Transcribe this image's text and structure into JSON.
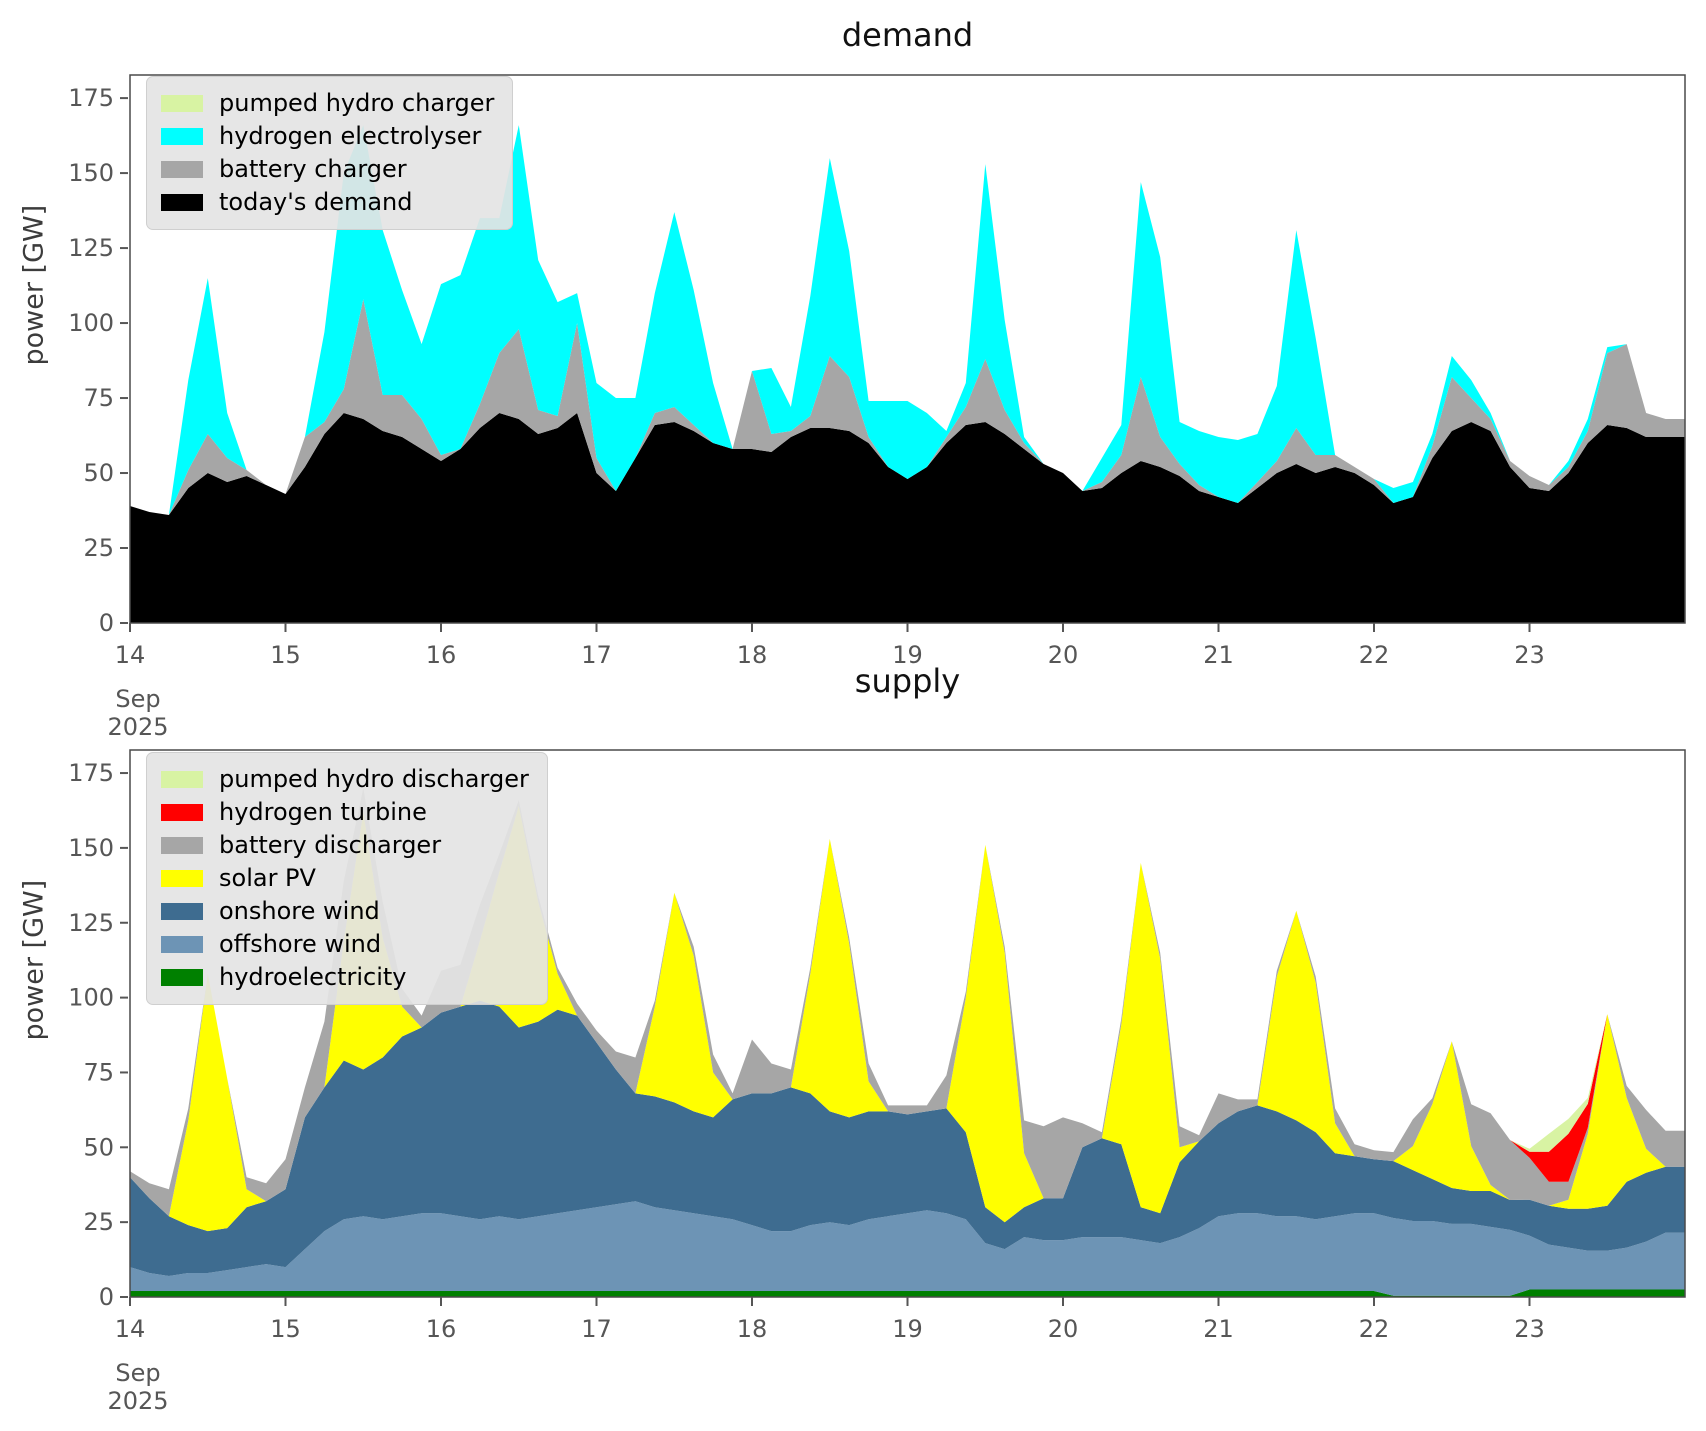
{
  "figure": {
    "ylabel": "power [GW]",
    "x_note": {
      "month": "Sep",
      "year": "2025"
    }
  },
  "chart_data": [
    {
      "id": "demand",
      "type": "area",
      "title": "demand",
      "ylabel": "power [GW]",
      "x_note": {
        "month": "Sep",
        "year": "2025"
      },
      "x_start": 14.0,
      "x_step": 0.125,
      "xlim": [
        14,
        24
      ],
      "ylim": [
        0,
        182.7
      ],
      "x_ticks": [
        14,
        15,
        16,
        17,
        18,
        19,
        20,
        21,
        22,
        23
      ],
      "y_ticks": [
        0,
        25,
        50,
        75,
        100,
        125,
        150,
        175
      ],
      "legend_position": "upper-left",
      "grid": false,
      "series": [
        {
          "name": "today's demand",
          "color": "#000000",
          "values": [
            39,
            37,
            36,
            45,
            50,
            47,
            49,
            46,
            43,
            52,
            63,
            70,
            68,
            64,
            62,
            58,
            54,
            58,
            65,
            70,
            68,
            63,
            65,
            70,
            50,
            44,
            55,
            66,
            67,
            64,
            60,
            58,
            58,
            57,
            62,
            65,
            65,
            64,
            60,
            52,
            48,
            52,
            60,
            66,
            67,
            63,
            58,
            53,
            50,
            44,
            45,
            50,
            54,
            52,
            49,
            44,
            42,
            40,
            45,
            50,
            53,
            50,
            52,
            50,
            46,
            40,
            42,
            55,
            64,
            67,
            64,
            52,
            45,
            44,
            50,
            60,
            66,
            65,
            62,
            62
          ]
        },
        {
          "name": "battery charger",
          "color": "#A6A6A6",
          "values": [
            0,
            0,
            0,
            6,
            13,
            8,
            2,
            0,
            0,
            10,
            4,
            8,
            40,
            12,
            14,
            10,
            2,
            0,
            8,
            20,
            30,
            8,
            4,
            30,
            5,
            0,
            0,
            4,
            5,
            2,
            0,
            0,
            26,
            6,
            2,
            4,
            24,
            18,
            2,
            0,
            0,
            0,
            2,
            6,
            21,
            8,
            2,
            0,
            0,
            0,
            2,
            6,
            28,
            10,
            4,
            2,
            0,
            0,
            2,
            4,
            12,
            6,
            4,
            2,
            2,
            0,
            0,
            4,
            18,
            8,
            4,
            2,
            4,
            2,
            2,
            4,
            24,
            28,
            8,
            6
          ]
        },
        {
          "name": "hydrogen electrolyser",
          "color": "#00FFFF",
          "values": [
            0,
            0,
            0,
            30,
            52,
            15,
            0,
            0,
            0,
            0,
            30,
            72,
            58,
            55,
            35,
            25,
            57,
            58,
            62,
            45,
            68,
            50,
            38,
            10,
            25,
            31,
            20,
            40,
            65,
            45,
            20,
            0,
            0,
            22,
            8,
            40,
            66,
            42,
            12,
            22,
            26,
            18,
            2,
            8,
            65,
            30,
            2,
            0,
            0,
            0,
            8,
            10,
            65,
            60,
            14,
            18,
            20,
            21,
            16,
            25,
            66,
            39,
            0,
            0,
            0,
            5,
            5,
            4,
            7,
            6,
            2,
            0,
            0,
            0,
            2,
            4,
            2,
            0,
            0,
            0
          ]
        },
        {
          "name": "pumped hydro charger",
          "color": "#D8F3A3",
          "values": [
            0,
            0,
            0,
            0,
            0,
            0,
            0,
            0,
            0,
            0,
            0,
            0,
            0,
            0,
            0,
            0,
            0,
            0,
            0,
            0,
            0,
            0,
            0,
            0,
            0,
            0,
            0,
            0,
            0,
            0,
            0,
            0,
            0,
            0,
            0,
            0,
            0,
            0,
            0,
            0,
            0,
            0,
            0,
            0,
            0,
            0,
            0,
            0,
            0,
            0,
            0,
            0,
            0,
            0,
            0,
            0,
            0,
            0,
            0,
            0,
            0,
            0,
            0,
            0,
            0,
            0,
            0,
            0,
            0,
            0,
            0,
            0,
            0,
            0,
            0,
            0,
            0,
            0,
            0,
            0
          ]
        }
      ]
    },
    {
      "id": "supply",
      "type": "area",
      "title": "supply",
      "ylabel": "power [GW]",
      "x_note": {
        "month": "Sep",
        "year": "2025"
      },
      "x_start": 14.0,
      "x_step": 0.125,
      "xlim": [
        14,
        24
      ],
      "ylim": [
        0,
        182.7
      ],
      "x_ticks": [
        14,
        15,
        16,
        17,
        18,
        19,
        20,
        21,
        22,
        23
      ],
      "y_ticks": [
        0,
        25,
        50,
        75,
        100,
        125,
        150,
        175
      ],
      "legend_position": "upper-left",
      "grid": false,
      "series": [
        {
          "name": "hydroelectricity",
          "color": "#008000",
          "values": [
            2,
            2,
            2,
            2,
            2,
            2,
            2,
            2,
            2,
            2,
            2,
            2,
            2,
            2,
            2,
            2,
            2,
            2,
            2,
            2,
            2,
            2,
            2,
            2,
            2,
            2,
            2,
            2,
            2,
            2,
            2,
            2,
            2,
            2,
            2,
            2,
            2,
            2,
            2,
            2,
            2,
            2,
            2,
            2,
            2,
            2,
            2,
            2,
            2,
            2,
            2,
            2,
            2,
            2,
            2,
            2,
            2,
            2,
            2,
            2,
            2,
            2,
            2,
            2,
            2,
            0.4,
            0.4,
            0.4,
            0.4,
            0.4,
            0.4,
            0.4,
            2.5,
            2.5,
            2.5,
            2.5,
            2.5,
            2.5,
            2.5,
            2.5
          ]
        },
        {
          "name": "offshore wind",
          "color": "#6D94B5",
          "values": [
            8,
            6,
            5,
            6,
            6,
            7,
            8,
            9,
            8,
            14,
            20,
            24,
            25,
            24,
            25,
            26,
            26,
            25,
            24,
            25,
            24,
            25,
            26,
            27,
            28,
            29,
            30,
            28,
            27,
            26,
            25,
            24,
            22,
            20,
            20,
            22,
            23,
            22,
            24,
            25,
            26,
            27,
            26,
            24,
            16,
            14,
            18,
            17,
            17,
            18,
            18,
            18,
            17,
            16,
            18,
            21,
            25,
            26,
            26,
            25,
            25,
            24,
            25,
            26,
            26,
            26,
            25,
            25,
            24,
            24,
            23,
            22,
            18,
            15,
            14,
            13,
            13,
            14,
            16,
            19
          ]
        },
        {
          "name": "onshore wind",
          "color": "#3E6C90",
          "values": [
            30,
            25,
            20,
            16,
            14,
            14,
            20,
            21,
            26,
            44,
            48,
            53,
            49,
            54,
            60,
            62,
            67,
            70,
            73,
            70,
            64,
            65,
            68,
            65,
            55,
            45,
            36,
            37,
            36,
            34,
            33,
            40,
            44,
            46,
            48,
            44,
            37,
            36,
            36,
            35,
            33,
            33,
            35,
            29,
            12,
            9,
            10,
            14,
            14,
            30,
            33,
            31,
            11,
            10,
            25,
            29,
            31,
            34,
            36,
            35,
            32,
            29,
            21,
            19,
            18,
            19,
            17,
            14,
            12,
            11,
            12,
            10,
            12,
            13,
            13,
            14,
            15,
            22,
            23,
            22
          ]
        },
        {
          "name": "solar PV",
          "color": "#FFFF00",
          "values": [
            0,
            0,
            0,
            35,
            86,
            50,
            6,
            0,
            0,
            0,
            0,
            40,
            86,
            40,
            10,
            0,
            0,
            0,
            20,
            45,
            74,
            40,
            12,
            0,
            0,
            0,
            0,
            30,
            70,
            52,
            15,
            0,
            0,
            0,
            0,
            40,
            91,
            58,
            10,
            0,
            0,
            0,
            0,
            45,
            121,
            90,
            18,
            0,
            0,
            0,
            0,
            40,
            115,
            85,
            5,
            0,
            0,
            0,
            0,
            45,
            70,
            50,
            10,
            0,
            0,
            0,
            8,
            25,
            49,
            15,
            2,
            0,
            0,
            0,
            3,
            25,
            64,
            28,
            8,
            0
          ]
        },
        {
          "name": "battery discharger",
          "color": "#A6A6A6",
          "values": [
            2,
            5,
            9,
            4,
            0,
            0,
            4,
            6,
            10,
            10,
            22,
            20,
            8,
            12,
            6,
            4,
            14,
            14,
            12,
            6,
            2,
            2,
            2,
            4,
            4,
            6,
            12,
            2,
            0,
            3,
            6,
            2,
            18,
            10,
            6,
            2,
            0,
            2,
            6,
            2,
            3,
            2,
            11,
            2,
            0,
            2,
            11,
            24,
            27,
            8,
            2,
            2,
            0,
            2,
            7,
            2,
            10,
            4,
            2,
            2,
            0,
            2,
            5,
            4,
            3,
            3,
            9,
            2,
            0,
            14,
            24,
            20,
            14,
            8,
            6,
            2,
            0,
            4,
            13,
            12
          ]
        },
        {
          "name": "hydrogen turbine",
          "color": "#FF0000",
          "values": [
            0,
            0,
            0,
            0,
            0,
            0,
            0,
            0,
            0,
            0,
            0,
            0,
            0,
            0,
            0,
            0,
            0,
            0,
            0,
            0,
            0,
            0,
            0,
            0,
            0,
            0,
            0,
            0,
            0,
            0,
            0,
            0,
            0,
            0,
            0,
            0,
            0,
            0,
            0,
            0,
            0,
            0,
            0,
            0,
            0,
            0,
            0,
            0,
            0,
            0,
            0,
            0,
            0,
            0,
            0,
            0,
            0,
            0,
            0,
            0,
            0,
            0,
            0,
            0,
            0,
            0,
            0,
            0,
            0,
            0,
            0,
            0,
            2,
            10,
            16,
            8,
            0,
            0,
            0,
            0
          ]
        },
        {
          "name": "pumped hydro discharger",
          "color": "#D8F3A3",
          "values": [
            0,
            0,
            0,
            0,
            0,
            0,
            0,
            0,
            0,
            0,
            0,
            0,
            0,
            0,
            0,
            0,
            0,
            0,
            0,
            0,
            0,
            0,
            0,
            0,
            0,
            0,
            0,
            0,
            0,
            0,
            0,
            0,
            0,
            0,
            0,
            0,
            0,
            0,
            0,
            0,
            0,
            0,
            0,
            0,
            0,
            0,
            0,
            0,
            0,
            0,
            0,
            0,
            0,
            0,
            0,
            0,
            0,
            0,
            0,
            0,
            0,
            0,
            0,
            0,
            0,
            0,
            0,
            0,
            0,
            0,
            0,
            0,
            1,
            6,
            5,
            2,
            0,
            0,
            0,
            0
          ]
        }
      ]
    }
  ]
}
